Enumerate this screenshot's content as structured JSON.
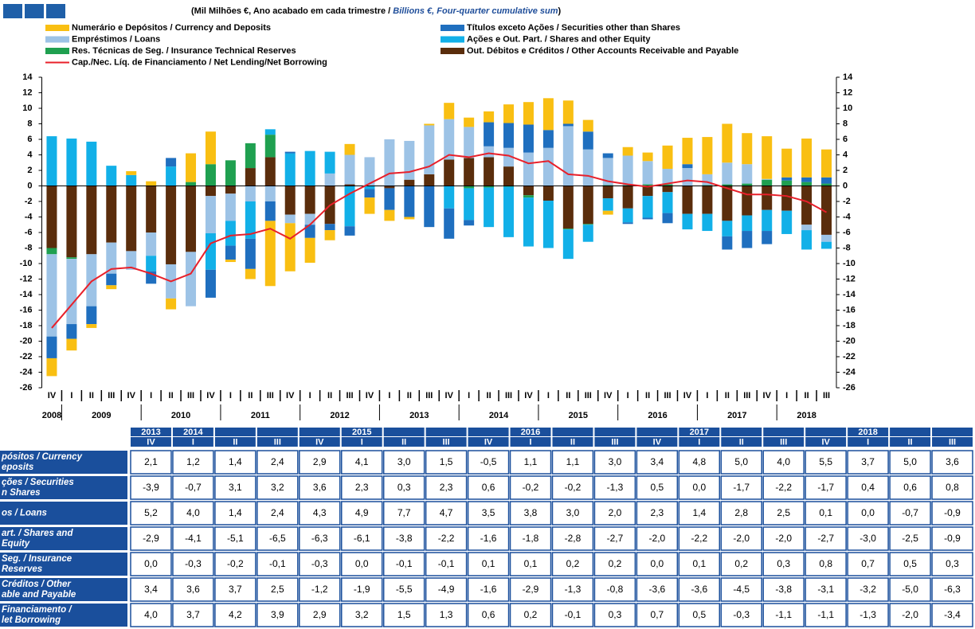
{
  "header": {
    "subtitle_pt": "(Mil Milhões €, Ano acabado em cada trimestre / ",
    "subtitle_en": "Billions €, Four-quarter cumulative sum",
    "subtitle_end": ")"
  },
  "chart_data": {
    "type": "stacked-bar-line",
    "categories": [
      "IV",
      "I",
      "II",
      "III",
      "IV",
      "I",
      "II",
      "III",
      "IV",
      "I",
      "II",
      "III",
      "IV",
      "I",
      "II",
      "III",
      "IV",
      "I",
      "II",
      "III",
      "IV",
      "I",
      "II",
      "III",
      "IV",
      "I",
      "II",
      "III",
      "IV",
      "I",
      "II",
      "III",
      "IV",
      "I",
      "II",
      "III",
      "IV",
      "I",
      "II",
      "III"
    ],
    "years": [
      "2008",
      "2009",
      "2010",
      "2011",
      "2012",
      "2013",
      "2014",
      "2015",
      "2016",
      "2017",
      "2018"
    ],
    "ylim": [
      -26,
      14
    ],
    "yticks": [
      -26,
      -24,
      -22,
      -20,
      -18,
      -16,
      -14,
      -12,
      -10,
      -8,
      -6,
      -4,
      -2,
      0,
      2,
      4,
      6,
      8,
      10,
      12,
      14
    ],
    "y2lim": [
      -26,
      14
    ],
    "y2ticks": [
      -26,
      -24,
      -22,
      -20,
      -18,
      -16,
      -14,
      -12,
      -10,
      -8,
      -6,
      -4,
      -2,
      0,
      2,
      4,
      6,
      8,
      10,
      12,
      14
    ],
    "series": [
      {
        "name": "Numerário e Depósitos / Currency and Deposits",
        "color": "#f9bf12",
        "kind": "bar",
        "values": [
          -2.3,
          -1.5,
          -0.5,
          -0.5,
          0.5,
          0.6,
          -1.4,
          3.7,
          4.2,
          -0.3,
          -1.3,
          -8.4,
          -6.2,
          -3.2,
          -1.3,
          1.4,
          -2.1,
          -1.4,
          -0.3,
          0.2,
          2.1,
          1.2,
          1.4,
          2.4,
          2.9,
          4.1,
          3.0,
          1.5,
          -0.5,
          1.1,
          1.1,
          3.0,
          3.4,
          4.8,
          5.0,
          4.0,
          5.5,
          3.7,
          5.0,
          3.6
        ]
      },
      {
        "name": "Títulos exceto Ações / Securities other than Shares",
        "color": "#1f6fbf",
        "kind": "bar",
        "values": [
          -2.8,
          -1.9,
          -2.3,
          -1.5,
          0,
          -1.6,
          1.1,
          0,
          -3.6,
          -1.8,
          -3.9,
          -2.5,
          0.2,
          -1.7,
          -0.8,
          -1.2,
          -1.1,
          -2.8,
          -4.0,
          -5.3,
          -3.9,
          -0.7,
          3.1,
          3.2,
          3.6,
          2.3,
          0.3,
          2.3,
          0.6,
          -0.2,
          -0.2,
          -1.3,
          0.5,
          0.0,
          -1.7,
          -2.2,
          -1.7,
          0.4,
          0.6,
          0.8
        ]
      },
      {
        "name": "Empréstimos / Loans",
        "color": "#9dc3e6",
        "kind": "bar",
        "values": [
          -10.6,
          -8.4,
          -6.7,
          -4.0,
          -2.4,
          -3.0,
          -4.4,
          -7.0,
          -4.8,
          -3.5,
          -2.0,
          -2.0,
          -1.1,
          -1.4,
          1.6,
          3.8,
          3.7,
          6.0,
          5.0,
          6.3,
          5.2,
          4.0,
          1.4,
          2.4,
          4.3,
          4.9,
          7.7,
          4.7,
          3.5,
          3.8,
          3.0,
          2.0,
          2.3,
          1.4,
          2.8,
          2.5,
          0.1,
          0.0,
          -0.7,
          -0.9
        ]
      },
      {
        "name": "Ações e Out. Part. / Shares and other Equity",
        "color": "#12b0e8",
        "kind": "bar",
        "values": [
          6.4,
          6.1,
          5.7,
          2.6,
          1.4,
          -2.0,
          2.5,
          0,
          -4.7,
          -3.2,
          -4.8,
          0.7,
          4.2,
          4.5,
          2.8,
          -5.2,
          -0.4,
          0,
          0,
          0,
          -2.9,
          -4.1,
          -5.1,
          -6.5,
          -6.3,
          -6.1,
          -3.8,
          -2.2,
          -1.6,
          -1.8,
          -2.8,
          -2.7,
          -2.0,
          -2.2,
          -2.0,
          -2.0,
          -2.7,
          -3.0,
          -2.5,
          -0.9
        ]
      },
      {
        "name": "Res. Técnicas de Seg. / Insurance Technical Reserves",
        "color": "#1fa050",
        "kind": "bar",
        "values": [
          -0.8,
          -0.2,
          0,
          0,
          0,
          0,
          0,
          0.5,
          2.8,
          3.3,
          3.2,
          2.9,
          0,
          0,
          0,
          0,
          0,
          0,
          0,
          0,
          0.0,
          -0.3,
          -0.2,
          -0.1,
          -0.3,
          0.0,
          -0.1,
          -0.1,
          0.1,
          0.1,
          0.2,
          0.2,
          0.0,
          0.1,
          0.2,
          0.3,
          0.8,
          0.7,
          0.5,
          0.3
        ]
      },
      {
        "name": "Out. Débitos e Créditos / Other Accounts Receivable and Payable",
        "color": "#5a2d0c",
        "kind": "bar",
        "values": [
          -8.0,
          -9.2,
          -8.8,
          -7.3,
          -8.4,
          -6.0,
          -10.1,
          -8.5,
          -1.3,
          -1.0,
          2.3,
          3.7,
          -3.7,
          -3.6,
          -4.9,
          0.2,
          0,
          -0.3,
          0.8,
          1.5,
          3.4,
          3.6,
          3.7,
          2.5,
          -1.2,
          -1.9,
          -5.5,
          -4.9,
          -1.6,
          -2.9,
          -1.3,
          -0.8,
          -3.6,
          -3.6,
          -4.5,
          -3.8,
          -3.1,
          -3.2,
          -5.0,
          -6.3
        ]
      },
      {
        "name": "Cap./Nec. Líq. de Financiamento / Net Lending/Net Borrowing",
        "color": "#e8202a",
        "kind": "line",
        "values": [
          -18.3,
          -15.3,
          -12.3,
          -10.7,
          -10.5,
          -11.3,
          -12.3,
          -11.3,
          -7.4,
          -6.4,
          -6.2,
          -5.5,
          -6.8,
          -5.0,
          -2.5,
          -1.0,
          0.3,
          1.6,
          1.8,
          2.5,
          4.0,
          3.7,
          4.2,
          3.9,
          2.9,
          3.2,
          1.5,
          1.3,
          0.6,
          0.2,
          -0.1,
          0.3,
          0.7,
          0.5,
          -0.3,
          -1.1,
          -1.1,
          -1.3,
          -2.0,
          -3.4
        ]
      }
    ]
  },
  "table": {
    "year_row": [
      "2013",
      "2014",
      null,
      null,
      null,
      "2015",
      null,
      null,
      null,
      "2016",
      null,
      null,
      null,
      "2017",
      null,
      null,
      null,
      "2018",
      null,
      null
    ],
    "quarter_row": [
      "IV",
      "I",
      "II",
      "III",
      "IV",
      "I",
      "II",
      "III",
      "IV",
      "I",
      "II",
      "III",
      "IV",
      "I",
      "II",
      "III",
      "IV",
      "I",
      "II",
      "III"
    ],
    "row_labels": [
      [
        "pósitos / Currency",
        "eposits"
      ],
      [
        "ções / Securities",
        "n Shares"
      ],
      [
        "os / Loans"
      ],
      [
        "art. / Shares and",
        "Equity"
      ],
      [
        "Seg. / Insurance",
        "Reserves"
      ],
      [
        "Créditos / Other",
        "able and Payable"
      ],
      [
        "Financiamento /",
        "let Borrowing"
      ]
    ],
    "rows": [
      [
        "2,1",
        "1,2",
        "1,4",
        "2,4",
        "2,9",
        "4,1",
        "3,0",
        "1,5",
        "-0,5",
        "1,1",
        "1,1",
        "3,0",
        "3,4",
        "4,8",
        "5,0",
        "4,0",
        "5,5",
        "3,7",
        "5,0",
        "3,6"
      ],
      [
        "-3,9",
        "-0,7",
        "3,1",
        "3,2",
        "3,6",
        "2,3",
        "0,3",
        "2,3",
        "0,6",
        "-0,2",
        "-0,2",
        "-1,3",
        "0,5",
        "0,0",
        "-1,7",
        "-2,2",
        "-1,7",
        "0,4",
        "0,6",
        "0,8"
      ],
      [
        "5,2",
        "4,0",
        "1,4",
        "2,4",
        "4,3",
        "4,9",
        "7,7",
        "4,7",
        "3,5",
        "3,8",
        "3,0",
        "2,0",
        "2,3",
        "1,4",
        "2,8",
        "2,5",
        "0,1",
        "0,0",
        "-0,7",
        "-0,9"
      ],
      [
        "-2,9",
        "-4,1",
        "-5,1",
        "-6,5",
        "-6,3",
        "-6,1",
        "-3,8",
        "-2,2",
        "-1,6",
        "-1,8",
        "-2,8",
        "-2,7",
        "-2,0",
        "-2,2",
        "-2,0",
        "-2,0",
        "-2,7",
        "-3,0",
        "-2,5",
        "-0,9"
      ],
      [
        "0,0",
        "-0,3",
        "-0,2",
        "-0,1",
        "-0,3",
        "0,0",
        "-0,1",
        "-0,1",
        "0,1",
        "0,1",
        "0,2",
        "0,2",
        "0,0",
        "0,1",
        "0,2",
        "0,3",
        "0,8",
        "0,7",
        "0,5",
        "0,3"
      ],
      [
        "3,4",
        "3,6",
        "3,7",
        "2,5",
        "-1,2",
        "-1,9",
        "-5,5",
        "-4,9",
        "-1,6",
        "-2,9",
        "-1,3",
        "-0,8",
        "-3,6",
        "-3,6",
        "-4,5",
        "-3,8",
        "-3,1",
        "-3,2",
        "-5,0",
        "-6,3"
      ],
      [
        "4,0",
        "3,7",
        "4,2",
        "3,9",
        "2,9",
        "3,2",
        "1,5",
        "1,3",
        "0,6",
        "0,2",
        "-0,1",
        "0,3",
        "0,7",
        "0,5",
        "-0,3",
        "-1,1",
        "-1,1",
        "-1,3",
        "-2,0",
        "-3,4"
      ]
    ]
  }
}
